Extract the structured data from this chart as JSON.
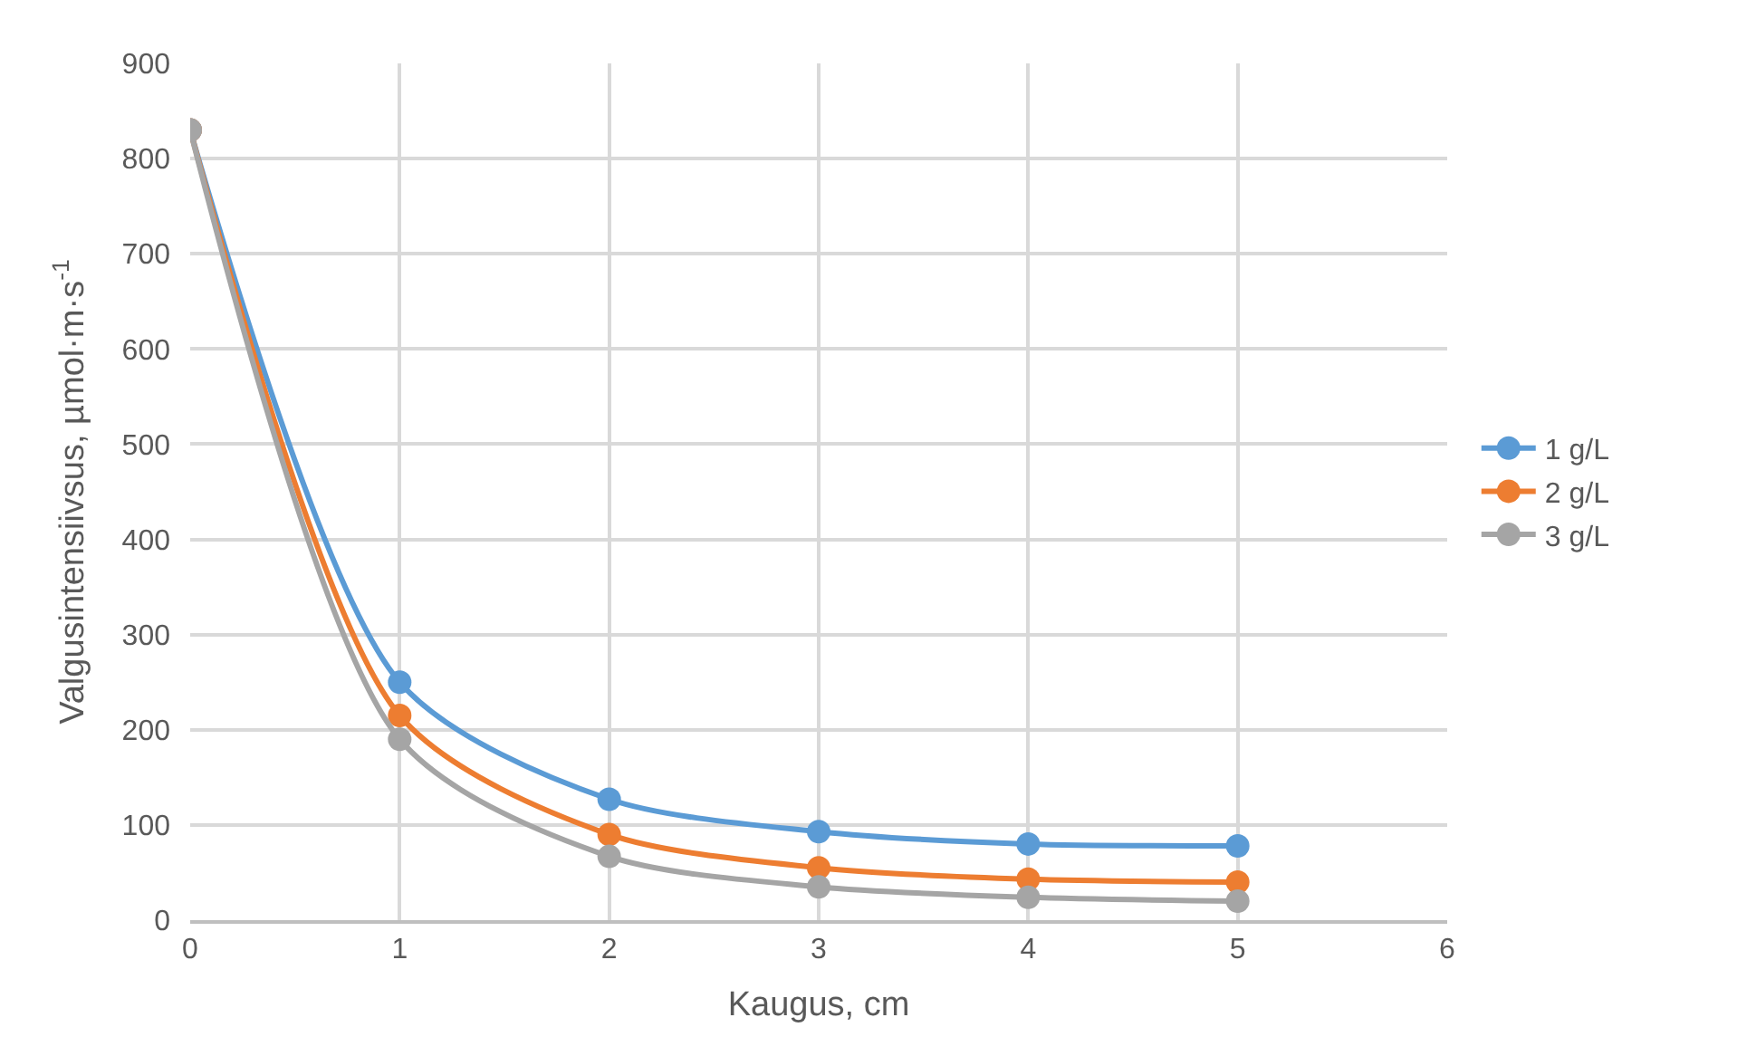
{
  "chart_data": {
    "type": "line",
    "xlabel": "Kaugus, cm",
    "ylabel": "Valgusintensiivsus, µmol·m·s$^{-1}$",
    "x": [
      0,
      1,
      2,
      3,
      4,
      5
    ],
    "series": [
      {
        "name": "1 g/L",
        "color": "#5b9bd5",
        "values": [
          830,
          250,
          127,
          93,
          80,
          78
        ]
      },
      {
        "name": "2 g/L",
        "color": "#ed7d31",
        "values": [
          830,
          215,
          90,
          55,
          43,
          40
        ]
      },
      {
        "name": "3 g/L",
        "color": "#a5a5a5",
        "values": [
          830,
          190,
          67,
          35,
          24,
          20
        ]
      }
    ],
    "xlim": [
      0,
      6
    ],
    "xticks": [
      0,
      1,
      2,
      3,
      4,
      5,
      6
    ],
    "ylim": [
      0,
      900
    ],
    "yticks": [
      0,
      100,
      200,
      300,
      400,
      500,
      600,
      700,
      800,
      900
    ],
    "grid": true,
    "legend": "right",
    "marker": "circle",
    "line_style": "solid"
  }
}
